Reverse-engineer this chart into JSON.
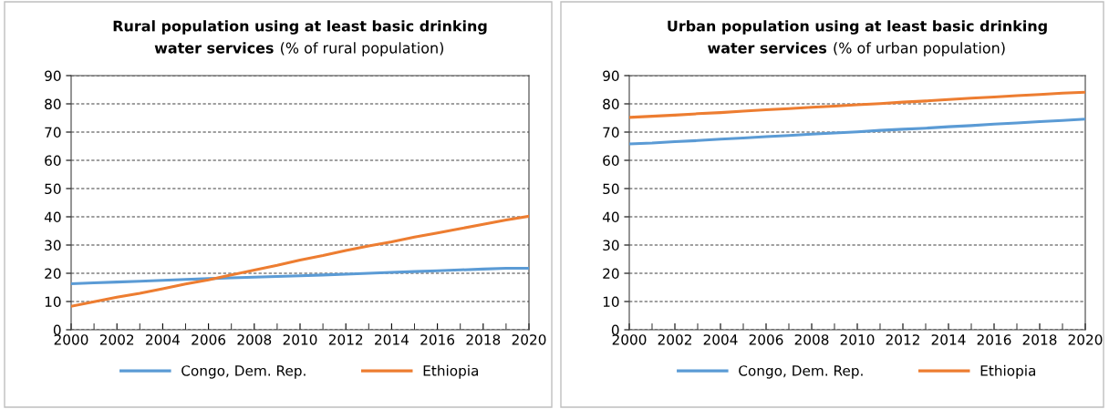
{
  "chart_data": [
    {
      "type": "line",
      "title": "Rural population using at least basic drinking water services",
      "subtitle": "(% of rural population)",
      "x": [
        2000,
        2001,
        2002,
        2003,
        2004,
        2005,
        2006,
        2007,
        2008,
        2009,
        2010,
        2011,
        2012,
        2013,
        2014,
        2015,
        2016,
        2017,
        2018,
        2019,
        2020
      ],
      "series": [
        {
          "name": "Congo, Dem. Rep.",
          "color": "#5b9bd5",
          "values": [
            16.3,
            16.6,
            16.9,
            17.2,
            17.5,
            17.8,
            18.1,
            18.4,
            18.6,
            18.9,
            19.1,
            19.4,
            19.7,
            20.0,
            20.3,
            20.6,
            20.9,
            21.2,
            21.5,
            21.8,
            21.8
          ]
        },
        {
          "name": "Ethiopia",
          "color": "#ed7d31",
          "values": [
            8.3,
            9.9,
            11.5,
            12.9,
            14.5,
            16.2,
            17.7,
            19.4,
            21.1,
            22.8,
            24.7,
            26.3,
            28.1,
            29.7,
            31.1,
            32.8,
            34.3,
            35.8,
            37.3,
            38.9,
            40.2
          ]
        }
      ],
      "xlim": [
        2000,
        2020
      ],
      "xticks": [
        2000,
        2002,
        2004,
        2006,
        2008,
        2010,
        2012,
        2014,
        2016,
        2018,
        2020
      ],
      "ylim": [
        0,
        90
      ],
      "yticks": [
        0,
        10,
        20,
        30,
        40,
        50,
        60,
        70,
        80,
        90
      ],
      "grid": "y",
      "legend": "bottom",
      "marker": "none",
      "line_style": "solid"
    },
    {
      "type": "line",
      "title": "Urban population using at least basic drinking water services",
      "subtitle": "(% of urban population)",
      "x": [
        2000,
        2001,
        2002,
        2003,
        2004,
        2005,
        2006,
        2007,
        2008,
        2009,
        2010,
        2011,
        2012,
        2013,
        2014,
        2015,
        2016,
        2017,
        2018,
        2019,
        2020
      ],
      "series": [
        {
          "name": "Congo, Dem. Rep.",
          "color": "#5b9bd5",
          "values": [
            65.8,
            66.1,
            66.6,
            67.0,
            67.5,
            67.9,
            68.4,
            68.8,
            69.3,
            69.7,
            70.1,
            70.6,
            71.0,
            71.4,
            71.9,
            72.3,
            72.8,
            73.2,
            73.7,
            74.1,
            74.6
          ]
        },
        {
          "name": "Ethiopia",
          "color": "#ed7d31",
          "values": [
            75.2,
            75.6,
            76.0,
            76.5,
            76.9,
            77.4,
            77.9,
            78.3,
            78.8,
            79.2,
            79.7,
            80.1,
            80.6,
            81.0,
            81.5,
            82.0,
            82.4,
            82.9,
            83.3,
            83.8,
            84.1
          ]
        }
      ],
      "xlim": [
        2000,
        2020
      ],
      "xticks": [
        2000,
        2002,
        2004,
        2006,
        2008,
        2010,
        2012,
        2014,
        2016,
        2018,
        2020
      ],
      "ylim": [
        0,
        90
      ],
      "yticks": [
        0,
        10,
        20,
        30,
        40,
        50,
        60,
        70,
        80,
        90
      ],
      "grid": "y",
      "legend": "bottom",
      "marker": "none",
      "line_style": "solid"
    }
  ]
}
